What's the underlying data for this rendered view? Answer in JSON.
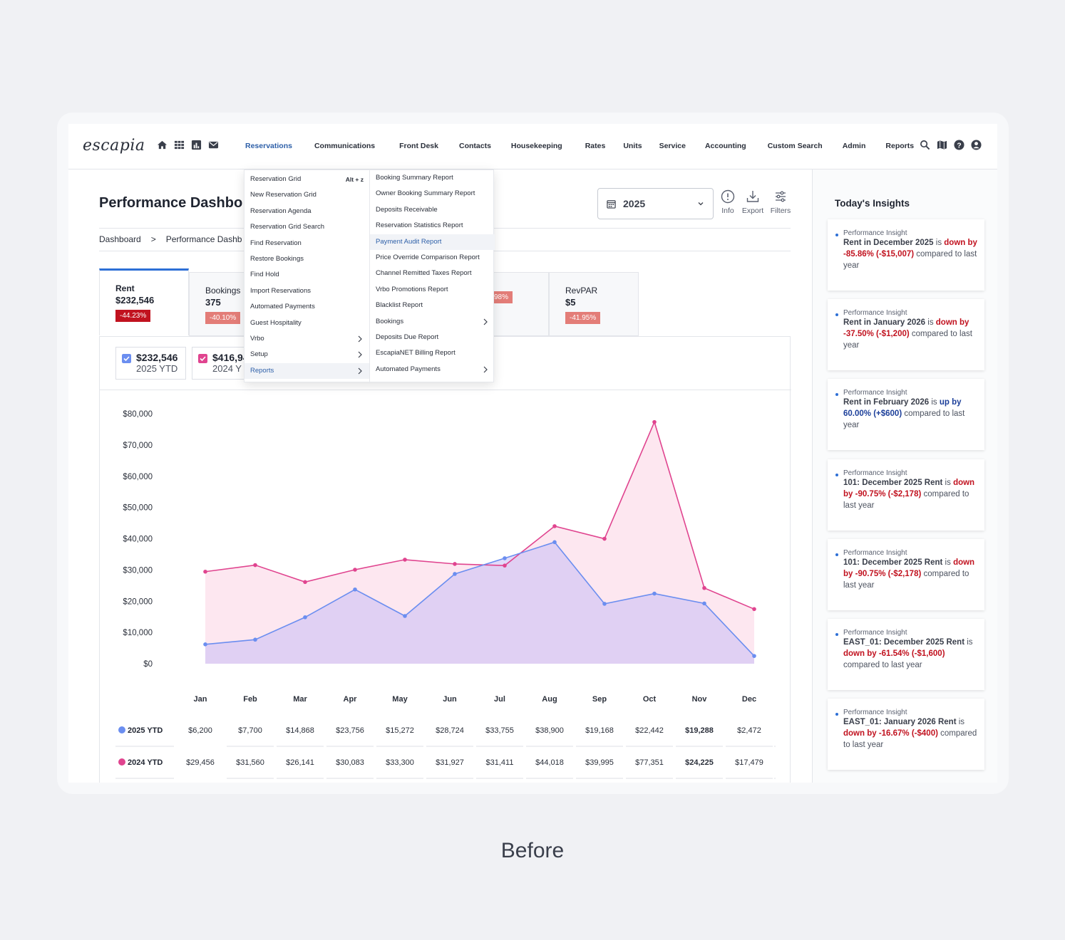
{
  "caption": "Before",
  "logo": "escapia",
  "nav": {
    "items": [
      "Reservations",
      "Communications",
      "Front Desk",
      "Contacts",
      "Housekeeping",
      "Rates",
      "Units",
      "Service",
      "Accounting",
      "Custom Search",
      "Admin",
      "Reports"
    ]
  },
  "page": {
    "title": "Performance Dashbo",
    "year": "2025",
    "tools": {
      "info": "Info",
      "export": "Export",
      "filters": "Filters"
    },
    "breadcrumb": {
      "home": "Dashboard",
      "sep": ">",
      "current": "Performance Dashb"
    }
  },
  "kpis": [
    {
      "label": "Rent",
      "value": "$232,546",
      "badge": "-44.23%"
    },
    {
      "label": "Bookings",
      "value": "375",
      "badge": "-40.10%"
    },
    {
      "label": "",
      "value": "",
      "badge": "98%"
    },
    {
      "label": "RevPAR",
      "value": "$5",
      "badge": "-41.95%"
    }
  ],
  "legend": [
    {
      "value": "$232,546",
      "sub": "2025 YTD"
    },
    {
      "value": "$416,94",
      "sub": "2024 Y"
    }
  ],
  "dropdown": {
    "col1": [
      {
        "label": "Reservation Grid",
        "shortcut": "Alt + z"
      },
      {
        "label": "New Reservation Grid"
      },
      {
        "label": "Reservation Agenda"
      },
      {
        "label": "Reservation Grid Search"
      },
      {
        "label": "Find Reservation"
      },
      {
        "label": "Restore Bookings"
      },
      {
        "label": "Find Hold"
      },
      {
        "label": "Import Reservations"
      },
      {
        "label": "Automated Payments"
      },
      {
        "label": "Guest Hospitality"
      },
      {
        "label": "Vrbo",
        "sub": true
      },
      {
        "label": "Setup",
        "sub": true
      },
      {
        "label": "Reports",
        "sub": true,
        "active": true
      }
    ],
    "col2": [
      {
        "label": "Booking Summary Report"
      },
      {
        "label": "Owner Booking Summary Report"
      },
      {
        "label": "Deposits Receivable"
      },
      {
        "label": "Reservation Statistics Report"
      },
      {
        "label": "Payment Audit Report",
        "active": true
      },
      {
        "label": "Price Override Comparison Report"
      },
      {
        "label": "Channel Remitted Taxes Report"
      },
      {
        "label": "Vrbo Promotions Report"
      },
      {
        "label": "Blacklist Report"
      },
      {
        "label": "Bookings",
        "sub": true
      },
      {
        "label": "Deposits Due Report"
      },
      {
        "label": "EscapiaNET Billing Report"
      },
      {
        "label": "Automated Payments",
        "sub": true
      }
    ]
  },
  "chart_data": {
    "type": "area",
    "categories": [
      "Jan",
      "Feb",
      "Mar",
      "Apr",
      "May",
      "Jun",
      "Jul",
      "Aug",
      "Sep",
      "Oct",
      "Nov",
      "Dec"
    ],
    "series": [
      {
        "name": "2025 YTD",
        "values": [
          6200,
          7700,
          14868,
          23756,
          15272,
          28724,
          33755,
          38900,
          19168,
          22442,
          19288,
          2472
        ],
        "labels": [
          "$6,200",
          "$7,700",
          "$14,868",
          "$23,756",
          "$15,272",
          "$28,724",
          "$33,755",
          "$38,900",
          "$19,168",
          "$22,442",
          "$19,288",
          "$2,472"
        ],
        "color": "#6b8ef0"
      },
      {
        "name": "2024 YTD",
        "values": [
          29456,
          31560,
          26141,
          30083,
          33300,
          31927,
          31411,
          44018,
          39995,
          77351,
          24225,
          17479
        ],
        "labels": [
          "$29,456",
          "$31,560",
          "$26,141",
          "$30,083",
          "$33,300",
          "$31,927",
          "$31,411",
          "$44,018",
          "$39,995",
          "$77,351",
          "$24,225",
          "$17,479"
        ],
        "color": "#e0448f"
      }
    ],
    "yticks": [
      "$80,000",
      "$70,000",
      "$60,000",
      "$50,000",
      "$40,000",
      "$30,000",
      "$20,000",
      "$10,000",
      "$0"
    ],
    "ylim": [
      0,
      80000
    ]
  },
  "insights": {
    "title": "Today's Insights",
    "cards": [
      {
        "tag": "Performance Insight",
        "a": "Rent in December 2025",
        "b": " is ",
        "c": "down by -85.86% (-$15,007)",
        "d": " compared to last year",
        "tone": "neg"
      },
      {
        "tag": "Performance Insight",
        "a": "Rent in January 2026",
        "b": " is ",
        "c": "down by -37.50% (-$1,200)",
        "d": " compared to last year",
        "tone": "neg"
      },
      {
        "tag": "Performance Insight",
        "a": "Rent in February 2026",
        "b": " is ",
        "c": "up by 60.00% (+$600)",
        "d": " compared to last year",
        "tone": "pos"
      },
      {
        "tag": "Performance Insight",
        "a": "101: December 2025 Rent",
        "b": " is ",
        "c": "down by -90.75% (-$2,178)",
        "d": " compared to last year",
        "tone": "neg"
      },
      {
        "tag": "Performance Insight",
        "a": "101: December 2025 Rent",
        "b": " is ",
        "c": "down by -90.75% (-$2,178)",
        "d": " compared to last year",
        "tone": "neg"
      },
      {
        "tag": "Performance Insight",
        "a": "EAST_01: December 2025 Rent",
        "b": " is ",
        "c": "down by -61.54% (-$1,600)",
        "d": " compared to last year",
        "tone": "neg"
      },
      {
        "tag": "Performance Insight",
        "a": "EAST_01: January 2026 Rent",
        "b": " is ",
        "c": "down by -16.67% (-$400)",
        "d": " compared to last year",
        "tone": "neg"
      }
    ]
  },
  "colors": {
    "accent": "#2d6fd6",
    "negative": "#c1121f",
    "positive": "#1c3f9a"
  }
}
